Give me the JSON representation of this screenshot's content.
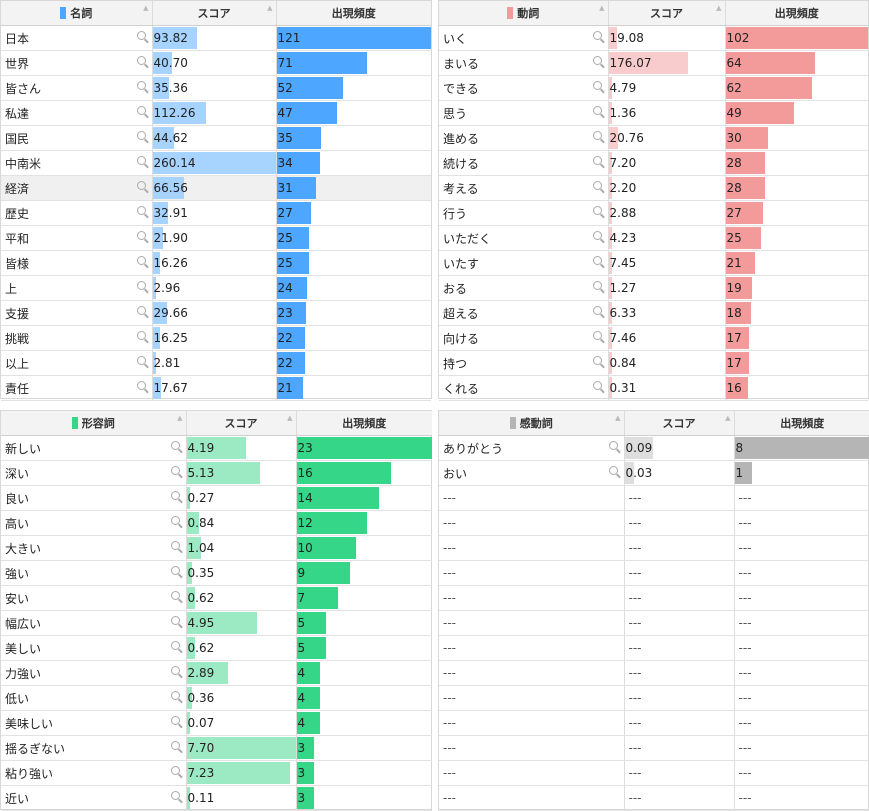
{
  "panels": [
    {
      "id": "noun",
      "title": "名詞",
      "color": "#4da6ff",
      "score_color": "#a6d3ff",
      "score_header": "スコア",
      "freq_header": "出現頻度",
      "highlight_row": 6,
      "rows": [
        {
          "word": "日本",
          "score": "93.82",
          "freq": "121"
        },
        {
          "word": "世界",
          "score": "40.70",
          "freq": "71"
        },
        {
          "word": "皆さん",
          "score": "35.36",
          "freq": "52"
        },
        {
          "word": "私達",
          "score": "112.26",
          "freq": "47"
        },
        {
          "word": "国民",
          "score": "44.62",
          "freq": "35"
        },
        {
          "word": "中南米",
          "score": "260.14",
          "freq": "34"
        },
        {
          "word": "経済",
          "score": "66.56",
          "freq": "31"
        },
        {
          "word": "歴史",
          "score": "32.91",
          "freq": "27"
        },
        {
          "word": "平和",
          "score": "21.90",
          "freq": "25"
        },
        {
          "word": "皆様",
          "score": "16.26",
          "freq": "25"
        },
        {
          "word": "上",
          "score": "2.96",
          "freq": "24"
        },
        {
          "word": "支援",
          "score": "29.66",
          "freq": "23"
        },
        {
          "word": "挑戦",
          "score": "16.25",
          "freq": "22"
        },
        {
          "word": "以上",
          "score": "2.81",
          "freq": "22"
        },
        {
          "word": "責任",
          "score": "17.67",
          "freq": "21"
        }
      ]
    },
    {
      "id": "verb",
      "title": "動詞",
      "color": "#f39a9a",
      "score_color": "#f8cccc",
      "score_header": "スコア",
      "freq_header": "出現頻度",
      "highlight_row": -1,
      "rows": [
        {
          "word": "いく",
          "score": "19.08",
          "freq": "102"
        },
        {
          "word": "まいる",
          "score": "176.07",
          "freq": "64"
        },
        {
          "word": "できる",
          "score": "4.79",
          "freq": "62"
        },
        {
          "word": "思う",
          "score": "1.36",
          "freq": "49"
        },
        {
          "word": "進める",
          "score": "20.76",
          "freq": "30"
        },
        {
          "word": "続ける",
          "score": "7.20",
          "freq": "28"
        },
        {
          "word": "考える",
          "score": "2.20",
          "freq": "28"
        },
        {
          "word": "行う",
          "score": "2.88",
          "freq": "27"
        },
        {
          "word": "いただく",
          "score": "4.23",
          "freq": "25"
        },
        {
          "word": "いたす",
          "score": "7.45",
          "freq": "21"
        },
        {
          "word": "おる",
          "score": "1.27",
          "freq": "19"
        },
        {
          "word": "超える",
          "score": "6.33",
          "freq": "18"
        },
        {
          "word": "向ける",
          "score": "7.46",
          "freq": "17"
        },
        {
          "word": "持つ",
          "score": "0.84",
          "freq": "17"
        },
        {
          "word": "くれる",
          "score": "0.31",
          "freq": "16"
        }
      ]
    },
    {
      "id": "adj",
      "title": "形容詞",
      "color": "#35d688",
      "score_color": "#9beac3",
      "score_header": "スコア",
      "freq_header": "出現頻度",
      "highlight_row": -1,
      "rows": [
        {
          "word": "新しい",
          "score": "4.19",
          "freq": "23"
        },
        {
          "word": "深い",
          "score": "5.13",
          "freq": "16"
        },
        {
          "word": "良い",
          "score": "0.27",
          "freq": "14"
        },
        {
          "word": "高い",
          "score": "0.84",
          "freq": "12"
        },
        {
          "word": "大きい",
          "score": "1.04",
          "freq": "10"
        },
        {
          "word": "強い",
          "score": "0.35",
          "freq": "9"
        },
        {
          "word": "安い",
          "score": "0.62",
          "freq": "7"
        },
        {
          "word": "幅広い",
          "score": "4.95",
          "freq": "5"
        },
        {
          "word": "美しい",
          "score": "0.62",
          "freq": "5"
        },
        {
          "word": "力強い",
          "score": "2.89",
          "freq": "4"
        },
        {
          "word": "低い",
          "score": "0.36",
          "freq": "4"
        },
        {
          "word": "美味しい",
          "score": "0.07",
          "freq": "4"
        },
        {
          "word": "揺るぎない",
          "score": "7.70",
          "freq": "3"
        },
        {
          "word": "粘り強い",
          "score": "7.23",
          "freq": "3"
        },
        {
          "word": "近い",
          "score": "0.11",
          "freq": "3"
        }
      ]
    },
    {
      "id": "interj",
      "title": "感動詞",
      "color": "#b5b5b5",
      "score_color": "#dedede",
      "score_header": "スコア",
      "freq_header": "出現頻度",
      "highlight_row": -1,
      "empty_text": "---",
      "empty_rows": 13,
      "rows": [
        {
          "word": "ありがとう",
          "score": "0.09",
          "freq": "8"
        },
        {
          "word": "おい",
          "score": "0.03",
          "freq": "1"
        }
      ]
    }
  ]
}
